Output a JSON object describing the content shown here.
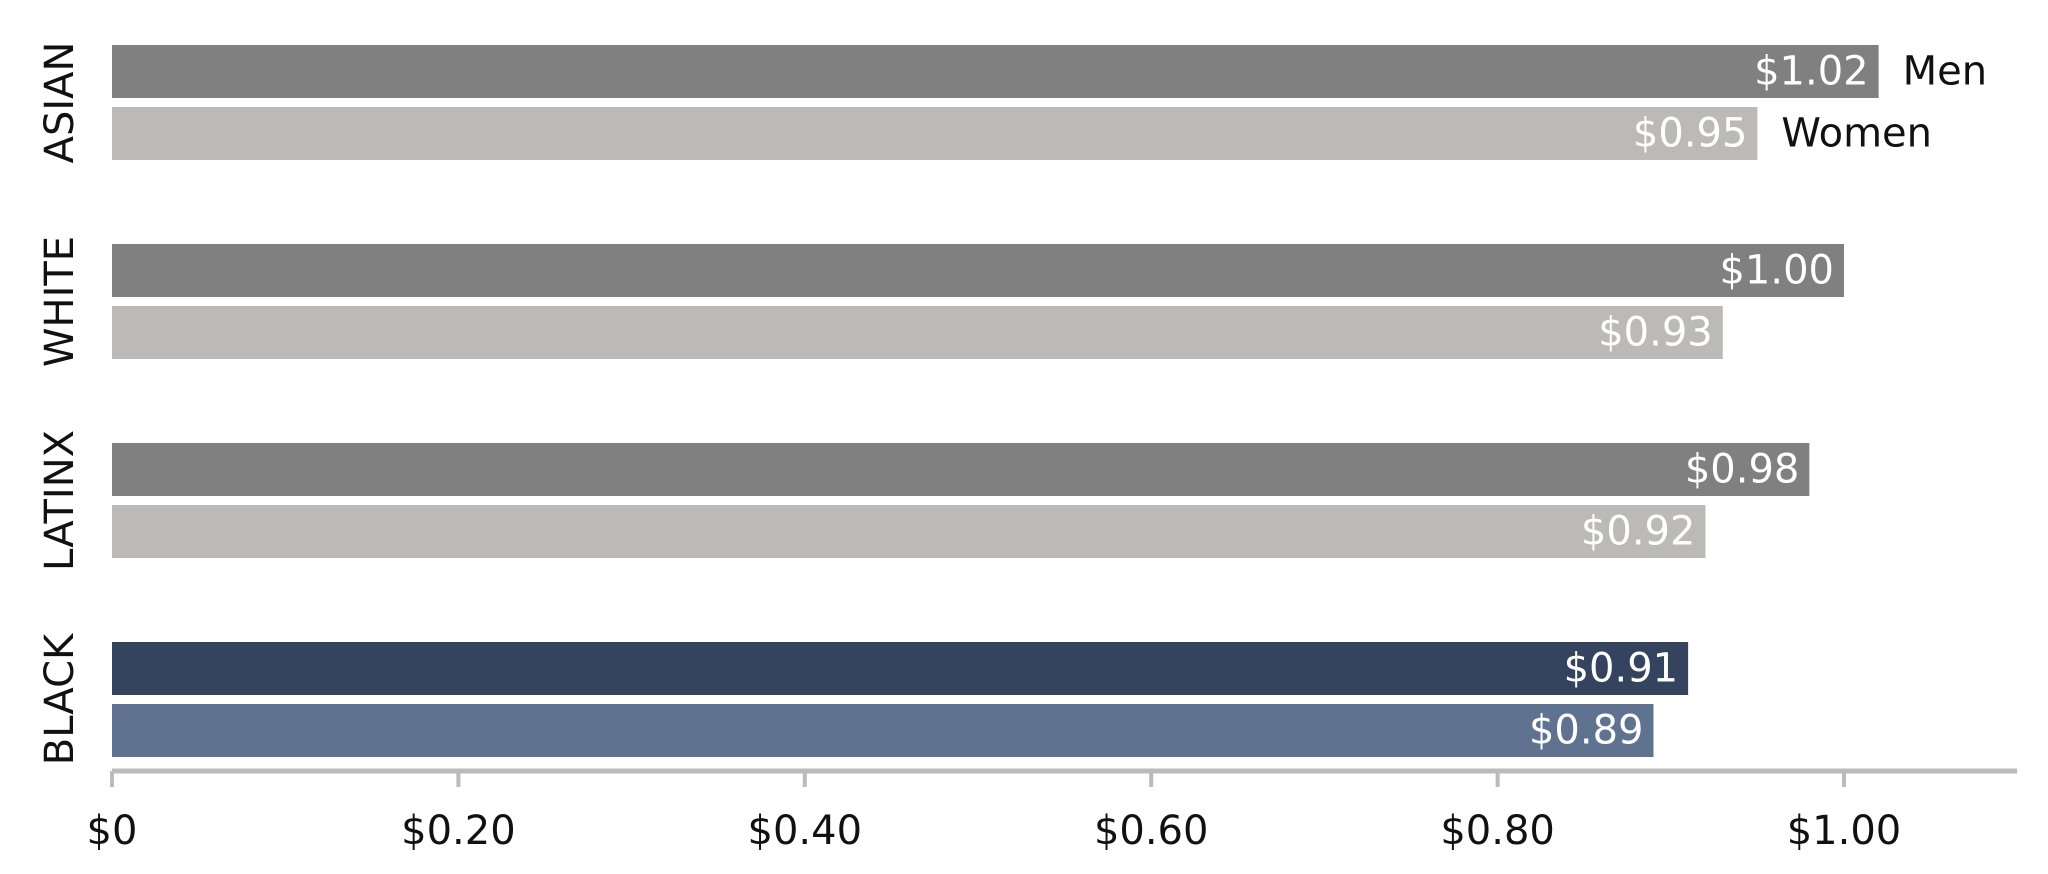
{
  "chart_data": {
    "type": "bar",
    "orientation": "horizontal",
    "categories": [
      "ASIAN",
      "WHITE",
      "LATINX",
      "BLACK"
    ],
    "series": [
      {
        "name": "Men",
        "colors": [
          "#808080",
          "#808080",
          "#808080",
          "#34445e"
        ],
        "values": [
          1.02,
          1.0,
          0.98,
          0.91
        ],
        "value_labels": [
          "$1.02",
          "$1.00",
          "$0.98",
          "$0.91"
        ]
      },
      {
        "name": "Women",
        "colors": [
          "#bbbab6",
          "#bbbab6",
          "#bbbab6",
          "#5f7390"
        ],
        "values": [
          0.95,
          0.93,
          0.92,
          0.89
        ],
        "value_labels": [
          "$0.95",
          "$0.93",
          "$0.92",
          "$0.89"
        ]
      }
    ],
    "xlim": [
      0,
      1.1
    ],
    "xticks": [
      {
        "value": 0,
        "label": "$0"
      },
      {
        "value": 0.2,
        "label": "$0.20"
      },
      {
        "value": 0.4,
        "label": "$0.40"
      },
      {
        "value": 0.6,
        "label": "$0.60"
      },
      {
        "value": 0.8,
        "label": "$0.80"
      },
      {
        "value": 1.0,
        "label": "$1.00"
      }
    ]
  }
}
